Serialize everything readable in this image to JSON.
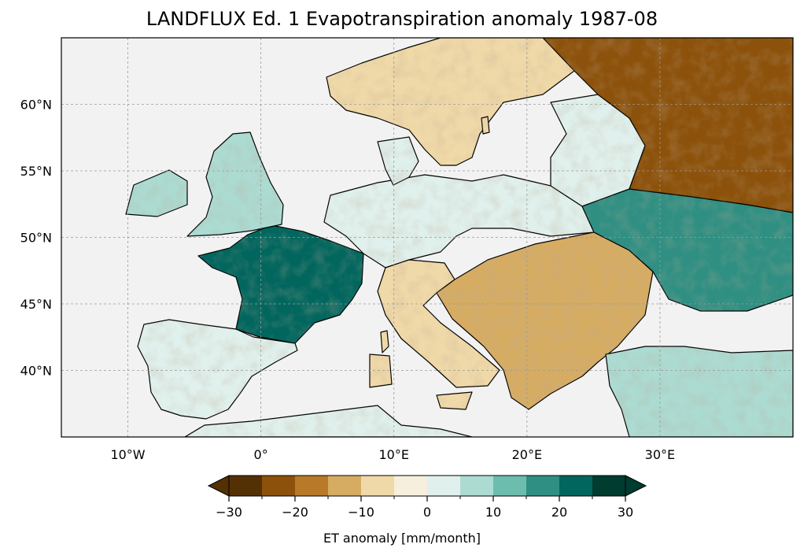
{
  "title": "LANDFLUX Ed. 1 Evapotranspiration anomaly 1987-08",
  "map": {
    "lon_range": [
      -15,
      40
    ],
    "lat_range": [
      35,
      65
    ],
    "lon_ticks": [
      {
        "value": -10,
        "label": "10°W"
      },
      {
        "value": 0,
        "label": "0°"
      },
      {
        "value": 10,
        "label": "10°E"
      },
      {
        "value": 20,
        "label": "20°E"
      },
      {
        "value": 30,
        "label": "30°E"
      }
    ],
    "lat_ticks": [
      {
        "value": 60,
        "label": "60°N"
      },
      {
        "value": 55,
        "label": "55°N"
      },
      {
        "value": 50,
        "label": "50°N"
      },
      {
        "value": 45,
        "label": "45°N"
      },
      {
        "value": 40,
        "label": "40°N"
      }
    ],
    "ocean_color": "#f2f2f2",
    "gridlines": true,
    "regions": [
      {
        "name": "France",
        "anomaly": 20
      },
      {
        "name": "Iberia",
        "anomaly": 0
      },
      {
        "name": "British Isles",
        "anomaly": 8
      },
      {
        "name": "Scandinavia",
        "anomaly": -8
      },
      {
        "name": "Italy",
        "anomaly": -10
      },
      {
        "name": "Balkans",
        "anomaly": -15
      },
      {
        "name": "Ukraine",
        "anomaly": 18
      },
      {
        "name": "Western Russia",
        "anomaly": -22
      },
      {
        "name": "Turkey",
        "anomaly": 5
      }
    ]
  },
  "colorbar": {
    "label": "ET anomaly [mm/month]",
    "boundaries": [
      -30,
      -25,
      -20,
      -15,
      -10,
      -5,
      0,
      5,
      10,
      15,
      20,
      25,
      30
    ],
    "colors": [
      "#543005",
      "#8c510a",
      "#b87a28",
      "#d6ac63",
      "#f0d9a8",
      "#f6efdd",
      "#e0f0ec",
      "#acdbd2",
      "#6cbdae",
      "#2e8f82",
      "#01665e",
      "#003c30"
    ],
    "extend_min_color": "#543005",
    "extend_max_color": "#003c30",
    "tick_values": [
      -30,
      -20,
      -10,
      0,
      10,
      20,
      30
    ],
    "tick_labels": [
      "−30",
      "−20",
      "−10",
      "0",
      "10",
      "20",
      "30"
    ]
  }
}
